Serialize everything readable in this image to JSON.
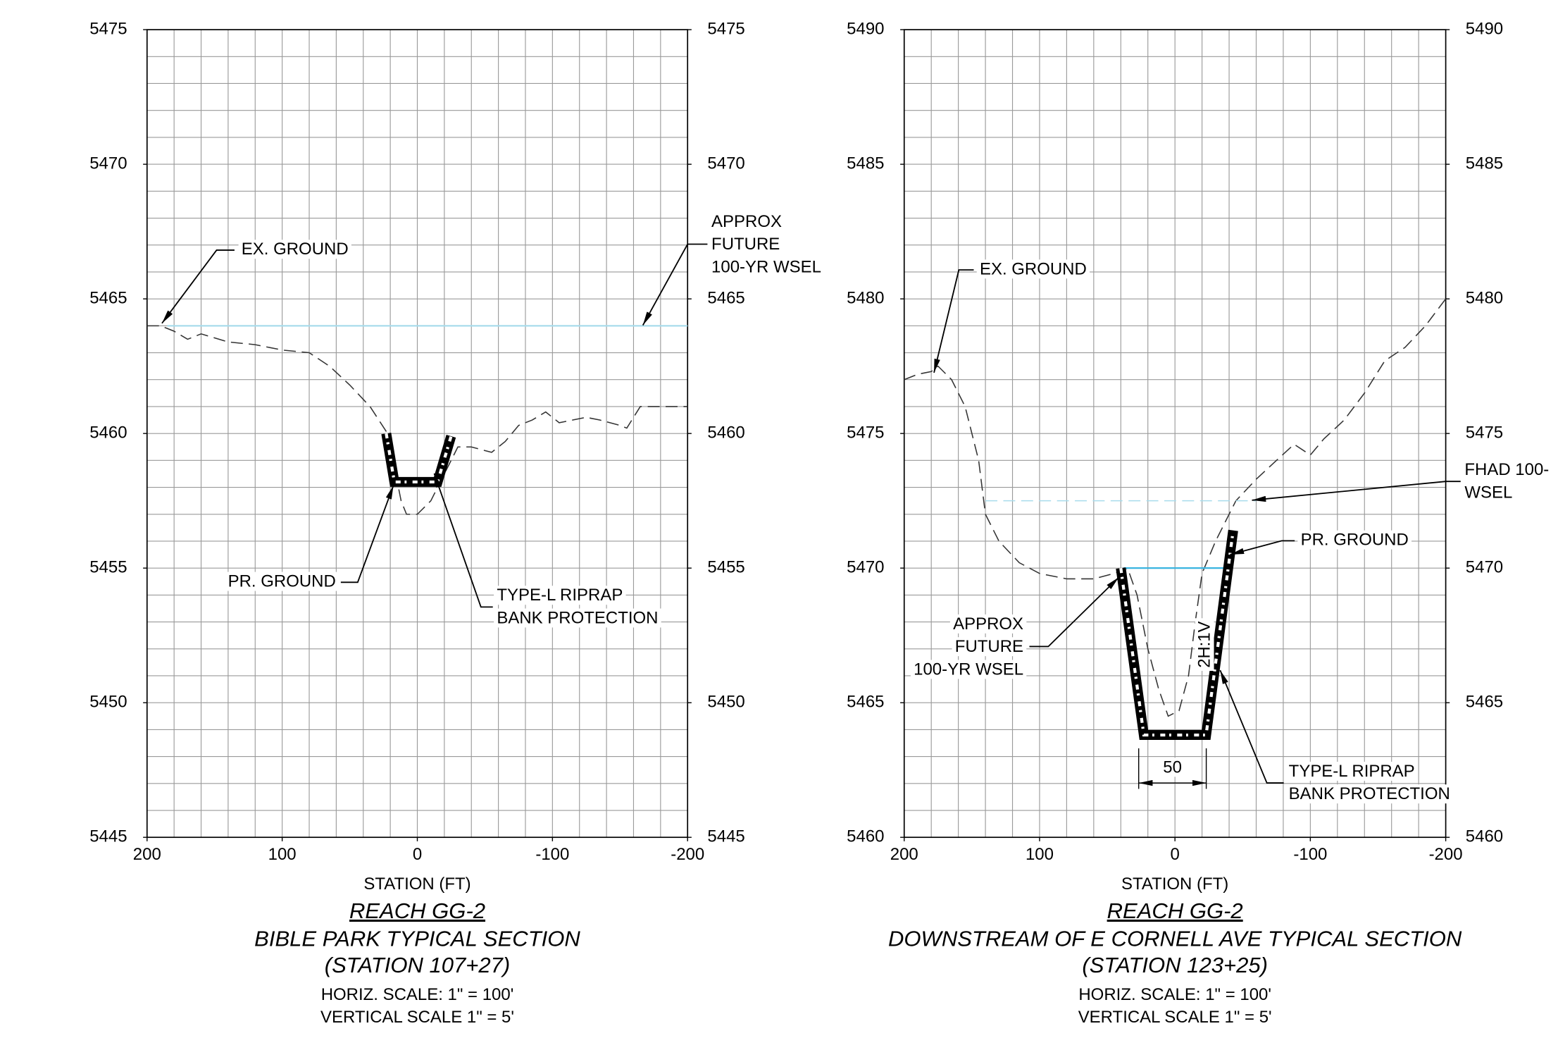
{
  "chart_data": [
    {
      "type": "line",
      "title": "REACH GG-2",
      "subtitle": "BIBLE PARK TYPICAL SECTION",
      "station": "(STATION 107+27)",
      "notes": [
        "HORIZ. SCALE: 1\" = 100'",
        "VERTICAL SCALE 1\" = 5'"
      ],
      "x_label": "STATION (FT)",
      "xlim": [
        200,
        -200
      ],
      "xticks": [
        200,
        100,
        0,
        -100,
        -200
      ],
      "ylim": [
        5445,
        5475
      ],
      "yticks": [
        5445,
        5450,
        5455,
        5460,
        5465,
        5470,
        5475
      ],
      "y2lim": [
        5445,
        5475
      ],
      "y2ticks": [
        5445,
        5450,
        5455,
        5460,
        5465,
        5470,
        5475
      ],
      "grid": true,
      "minor_xticks": [
        200,
        180,
        160,
        140,
        120,
        100,
        80,
        60,
        40,
        20,
        0,
        -20,
        -40,
        -60,
        -80,
        -100,
        -120,
        -140,
        -160,
        -180,
        -200
      ],
      "minor_yticks": [
        5445,
        5446,
        5447,
        5448,
        5449,
        5450,
        5451,
        5452,
        5453,
        5454,
        5455,
        5456,
        5457,
        5458,
        5459,
        5460,
        5461,
        5462,
        5463,
        5464,
        5465,
        5466,
        5467,
        5468,
        5469,
        5470,
        5471,
        5472,
        5473,
        5474,
        5475
      ],
      "series": [
        {
          "style": "dashed",
          "color": "#333333",
          "x": [
            200,
            190,
            180,
            170,
            160,
            140,
            120,
            100,
            80,
            65,
            50,
            35,
            22,
            18,
            12,
            8,
            0,
            -10,
            -20,
            -30,
            -40,
            -55,
            -65,
            -75,
            -85,
            -95,
            -105,
            -115,
            -125,
            -135,
            -150,
            -155,
            -165,
            -180,
            -200
          ],
          "values": [
            5464,
            5464,
            5463.8,
            5463.5,
            5463.7,
            5463.4,
            5463.3,
            5463.1,
            5463,
            5462.5,
            5461.8,
            5461,
            5460,
            5459,
            5457.5,
            5457,
            5457,
            5457.5,
            5458.5,
            5459.5,
            5459.5,
            5459.3,
            5459.7,
            5460.3,
            5460.5,
            5460.8,
            5460.4,
            5460.5,
            5460.6,
            5460.5,
            5460.3,
            5460.2,
            5461,
            5461,
            5461
          ]
        },
        {
          "style": "solid",
          "color": "#a8dcec",
          "x": [
            185,
            -200
          ],
          "values": [
            5464,
            5464
          ]
        },
        {
          "style": "riprap",
          "color": "#000000",
          "x": [
            23,
            17,
            -15,
            -25
          ],
          "values": [
            5460,
            5458.2,
            5458.2,
            5459.9
          ]
        }
      ],
      "annotations": [
        {
          "lines": [
            "EX. GROUND"
          ]
        },
        {
          "lines": [
            "APPROX",
            "FUTURE",
            "100-YR WSEL"
          ]
        },
        {
          "lines": [
            "PR. GROUND"
          ]
        },
        {
          "lines": [
            "TYPE-L RIPRAP",
            "BANK PROTECTION"
          ]
        }
      ]
    },
    {
      "type": "line",
      "title": "REACH GG-2",
      "subtitle": "DOWNSTREAM OF E CORNELL AVE TYPICAL SECTION",
      "station": "(STATION 123+25)",
      "notes": [
        "HORIZ. SCALE: 1\" = 100'",
        "VERTICAL SCALE 1\" = 5'"
      ],
      "x_label": "STATION (FT)",
      "xlim": [
        200,
        -200
      ],
      "xticks": [
        200,
        100,
        0,
        -100,
        -200
      ],
      "ylim": [
        5460,
        5490
      ],
      "yticks": [
        5460,
        5465,
        5470,
        5475,
        5480,
        5485,
        5490
      ],
      "y2lim": [
        5460,
        5490
      ],
      "y2ticks": [
        5460,
        5465,
        5470,
        5475,
        5480,
        5485,
        5490
      ],
      "grid": true,
      "minor_xticks": [
        200,
        180,
        160,
        140,
        120,
        100,
        80,
        60,
        40,
        20,
        0,
        -20,
        -40,
        -60,
        -80,
        -100,
        -120,
        -140,
        -160,
        -180,
        -200
      ],
      "minor_yticks": [
        5460,
        5461,
        5462,
        5463,
        5464,
        5465,
        5466,
        5467,
        5468,
        5469,
        5470,
        5471,
        5472,
        5473,
        5474,
        5475,
        5476,
        5477,
        5478,
        5479,
        5480,
        5481,
        5482,
        5483,
        5484,
        5485,
        5486,
        5487,
        5488,
        5489,
        5490
      ],
      "series": [
        {
          "style": "dashed",
          "color": "#333333",
          "x": [
            200,
            190,
            180,
            175,
            165,
            155,
            145,
            140,
            130,
            115,
            100,
            80,
            60,
            45,
            35,
            28,
            20,
            12,
            5,
            -3,
            -10,
            -15,
            -20,
            -30,
            -45,
            -60,
            -75,
            -88,
            -100,
            -110,
            -125,
            -140,
            -155,
            -170,
            -185,
            -200
          ],
          "values": [
            5477,
            5477.2,
            5477.3,
            5477.5,
            5477,
            5476,
            5474,
            5472,
            5471,
            5470.2,
            5469.8,
            5469.6,
            5469.6,
            5469.8,
            5470,
            5469,
            5467,
            5465.5,
            5464.5,
            5464.7,
            5466,
            5468,
            5469.8,
            5471,
            5472.5,
            5473.3,
            5474,
            5474.6,
            5474.2,
            5474.8,
            5475.5,
            5476.5,
            5477.7,
            5478.2,
            5479,
            5480
          ]
        },
        {
          "style": "dashed",
          "color": "#a8dcec",
          "x": [
            140,
            -60
          ],
          "values": [
            5472.5,
            5472.5
          ]
        },
        {
          "style": "solid",
          "color": "#3ab4e0",
          "x": [
            38,
            -38
          ],
          "values": [
            5470,
            5470
          ]
        },
        {
          "style": "riprap",
          "color": "#000000",
          "x": [
            40,
            23,
            -23,
            -43
          ],
          "values": [
            5470,
            5463.8,
            5463.8,
            5471.4
          ]
        }
      ],
      "annotations": [
        {
          "lines": [
            "EX. GROUND"
          ]
        },
        {
          "lines": [
            "FHAD 100-",
            "WSEL"
          ]
        },
        {
          "lines": [
            "PR. GROUND"
          ]
        },
        {
          "lines": [
            "APPROX",
            "FUTURE",
            "100-YR WSEL"
          ]
        },
        {
          "lines": [
            "TYPE-L RIPRAP",
            "BANK PROTECTION"
          ]
        },
        {
          "lines": [
            "50"
          ]
        },
        {
          "lines": [
            "2H:1V"
          ]
        }
      ]
    }
  ]
}
